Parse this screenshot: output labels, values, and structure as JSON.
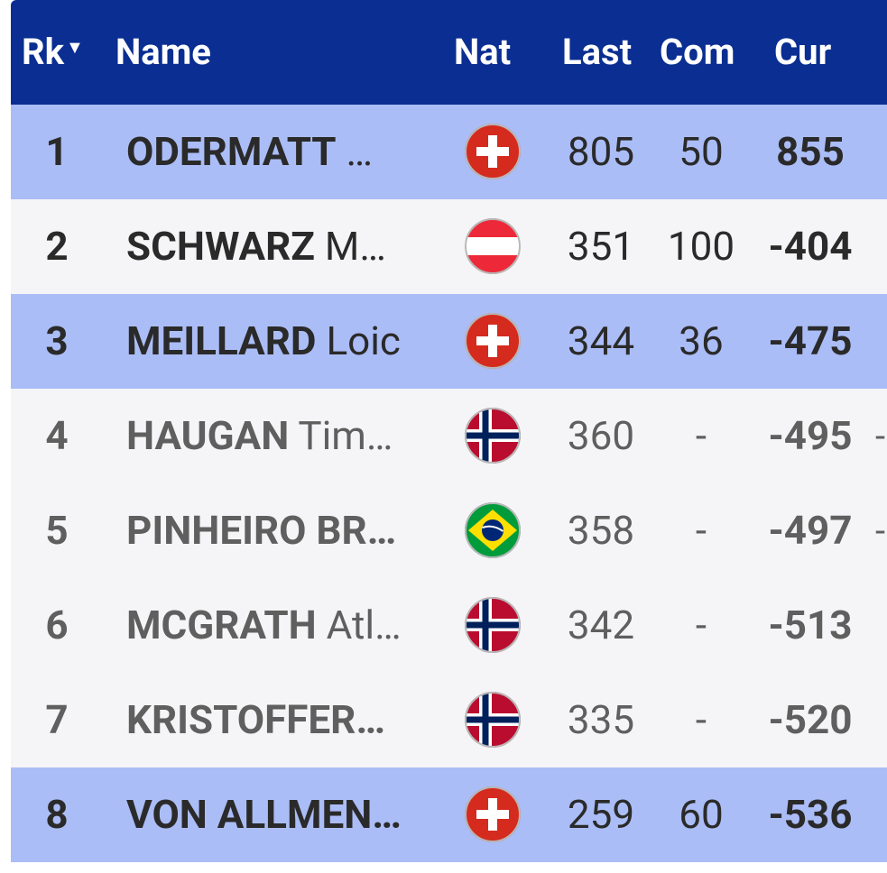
{
  "colors": {
    "header_bg": "#0a2e91",
    "highlight_bg": "#abbdf6",
    "plain_bg": "#f5f5f7",
    "dark_text": "#2a2a2a",
    "muted_text": "#5f5f5f"
  },
  "header": {
    "rank": "Rk",
    "sort_icon": "▼",
    "name": "Name",
    "nation": "Nat",
    "last": "Last",
    "com": "Com",
    "cur": "Cur"
  },
  "rows": [
    {
      "rank": "1",
      "last_name": "ODERMATT",
      "first_name": "…",
      "nation": "SUI",
      "last": "805",
      "com": "50",
      "cur": "855",
      "trail": "",
      "highlight": true
    },
    {
      "rank": "2",
      "last_name": "SCHWARZ",
      "first_name": "M…",
      "nation": "AUT",
      "last": "351",
      "com": "100",
      "cur": "-404",
      "trail": "",
      "highlight": false
    },
    {
      "rank": "3",
      "last_name": "MEILLARD",
      "first_name": "Loic",
      "nation": "SUI",
      "last": "344",
      "com": "36",
      "cur": "-475",
      "trail": "",
      "highlight": true
    },
    {
      "rank": "4",
      "last_name": "HAUGAN",
      "first_name": "Tim…",
      "nation": "NOR",
      "last": "360",
      "com": "-",
      "cur": "-495",
      "trail": "-",
      "highlight": false
    },
    {
      "rank": "5",
      "last_name": "PINHEIRO BR…",
      "first_name": "",
      "nation": "BRA",
      "last": "358",
      "com": "-",
      "cur": "-497",
      "trail": "-",
      "highlight": false
    },
    {
      "rank": "6",
      "last_name": "MCGRATH",
      "first_name": "Atl…",
      "nation": "NOR",
      "last": "342",
      "com": "-",
      "cur": "-513",
      "trail": "",
      "highlight": false
    },
    {
      "rank": "7",
      "last_name": "KRISTOFFER…",
      "first_name": "",
      "nation": "NOR",
      "last": "335",
      "com": "-",
      "cur": "-520",
      "trail": "",
      "highlight": false
    },
    {
      "rank": "8",
      "last_name": "VON ALLMEN…",
      "first_name": "",
      "nation": "SUI",
      "last": "259",
      "com": "60",
      "cur": "-536",
      "trail": "",
      "highlight": true
    }
  ]
}
